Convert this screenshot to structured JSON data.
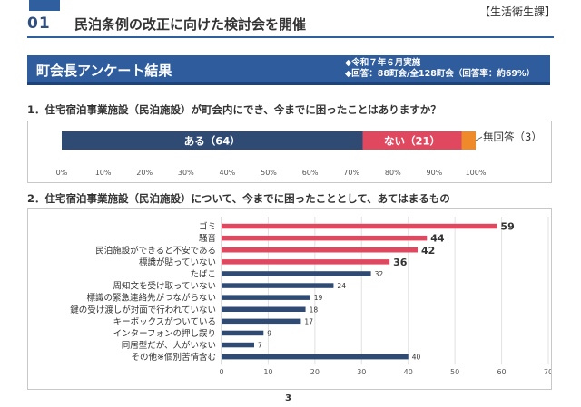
{
  "header": {
    "section_number": "01",
    "title": "民泊条例の改正に向けた検討会を開催",
    "department": "【生活衛生課】"
  },
  "banner": {
    "title": "町会長アンケート結果",
    "meta_line1": "◆令和７年６月実施",
    "meta_line2": "◆回答：88町会/全128町会（回答率：約69%）"
  },
  "questions": {
    "q1": "1．住宅宿泊事業施設（民泊施設）が町会内にでき、今までに困ったことはありますか？",
    "q2": "2．住宅宿泊事業施設（民泊施設）について、今までに困ったこととして、あてはまるもの"
  },
  "page_number": "3",
  "colors": {
    "navy": "#2f4a73",
    "red": "#e0485f",
    "orange": "#ee8a2a",
    "banner": "#2e5c9c"
  },
  "chart_data": [
    {
      "type": "bar",
      "orientation": "horizontal-stacked-percent",
      "segments": [
        {
          "label": "ある（64）",
          "value": 64,
          "percent": 72.7,
          "color": "#2f4a73"
        },
        {
          "label": "ない（21）",
          "value": 21,
          "percent": 23.9,
          "color": "#e0485f"
        },
        {
          "label": "無回答（3）",
          "value": 3,
          "percent": 3.4,
          "color": "#ee8a2a"
        }
      ],
      "xlim": [
        0,
        100
      ],
      "xticks": [
        "0%",
        "10%",
        "20%",
        "30%",
        "40%",
        "50%",
        "60%",
        "70%",
        "80%",
        "90%",
        "100%"
      ],
      "grid": false
    },
    {
      "type": "bar",
      "orientation": "horizontal",
      "categories": [
        "ゴミ",
        "騒音",
        "民泊施設ができると不安である",
        "標識が貼っていない",
        "たばこ",
        "周知文を受け取っていない",
        "標識の緊急連絡先がつながらない",
        "鍵の受け渡しが対面で行われていない",
        "キーボックスがついている",
        "インターフォンの押し誤り",
        "同居型だが、人がいない",
        "その他※個別苦情含む"
      ],
      "values": [
        59,
        44,
        42,
        36,
        32,
        24,
        19,
        18,
        17,
        9,
        7,
        40
      ],
      "highlighted": [
        true,
        true,
        true,
        true,
        false,
        false,
        false,
        false,
        false,
        false,
        false,
        false
      ],
      "xlim": [
        0,
        70
      ],
      "xticks": [
        "0",
        "10",
        "20",
        "30",
        "40",
        "50",
        "60",
        "70"
      ],
      "grid": true
    }
  ]
}
